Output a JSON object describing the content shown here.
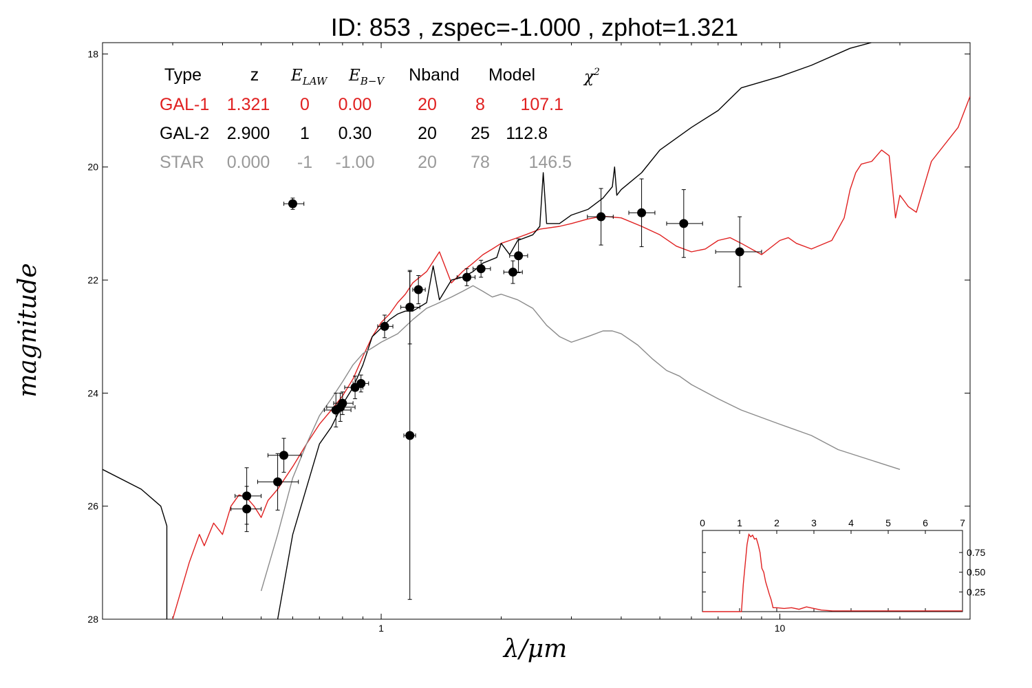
{
  "chart_data": {
    "type": "line",
    "title": "ID:  853   , zspec=-1.000 , zphot=1.321",
    "xlabel": "λ/μm",
    "ylabel": "magnitude",
    "x_scale": "log",
    "xlim": [
      0.2,
      30
    ],
    "ylim": [
      28,
      17.8
    ],
    "x_ticks": [
      {
        "value": 1,
        "label": "1"
      },
      {
        "value": 10,
        "label": "10"
      }
    ],
    "y_ticks": [
      {
        "value": 18,
        "label": "18"
      },
      {
        "value": 20,
        "label": "20"
      },
      {
        "value": 22,
        "label": "22"
      },
      {
        "value": 24,
        "label": "24"
      },
      {
        "value": 26,
        "label": "26"
      },
      {
        "value": 28,
        "label": "28"
      }
    ],
    "grid": false,
    "legend_table": {
      "headers": [
        "Type",
        "z",
        "E_LAW",
        "E_B−V",
        "Nband",
        "Model",
        "χ²"
      ],
      "rows": [
        {
          "cells": [
            "GAL-1",
            "1.321",
            "0",
            "0.00",
            "20",
            "8",
            "107.1"
          ],
          "color": "#e02020"
        },
        {
          "cells": [
            "GAL-2",
            "2.900",
            "1",
            "0.30",
            "20",
            "25",
            "112.8"
          ],
          "color": "#000000"
        },
        {
          "cells": [
            "STAR",
            "0.000",
            "-1",
            "-1.00",
            "20",
            "78",
            "146.5"
          ],
          "color": "#999999"
        }
      ]
    },
    "series": [
      {
        "name": "GAL-1",
        "color": "#e02020",
        "x": [
          0.3,
          0.33,
          0.35,
          0.36,
          0.38,
          0.4,
          0.42,
          0.44,
          0.46,
          0.48,
          0.5,
          0.52,
          0.55,
          0.6,
          0.65,
          0.7,
          0.75,
          0.8,
          0.85,
          0.9,
          0.95,
          1.0,
          1.05,
          1.1,
          1.15,
          1.2,
          1.3,
          1.4,
          1.5,
          1.6,
          1.7,
          1.8,
          1.9,
          2.0,
          2.1,
          2.2,
          2.3,
          2.5,
          2.8,
          3.0,
          3.3,
          3.6,
          4.0,
          4.5,
          5.0,
          5.5,
          6.0,
          6.5,
          7.0,
          7.5,
          8.0,
          9.0,
          10.0,
          10.5,
          11.0,
          12.0,
          13.5,
          14.5,
          15.0,
          15.5,
          16.0,
          17.0,
          18.0,
          18.8,
          19.5,
          20.0,
          20.5,
          21.0,
          22.0,
          24.0,
          28.0,
          30.0
        ],
        "y": [
          28.0,
          27.0,
          26.5,
          26.7,
          26.3,
          26.5,
          26.0,
          25.8,
          25.85,
          26.0,
          26.2,
          25.9,
          25.7,
          25.3,
          24.9,
          24.55,
          24.3,
          24.05,
          23.75,
          23.35,
          23.0,
          22.75,
          22.6,
          22.4,
          22.25,
          22.05,
          21.85,
          21.5,
          22.05,
          21.85,
          21.7,
          21.55,
          21.45,
          21.35,
          21.3,
          21.25,
          21.2,
          21.1,
          21.05,
          21.0,
          20.92,
          20.87,
          20.9,
          21.05,
          21.2,
          21.4,
          21.5,
          21.45,
          21.3,
          21.25,
          21.35,
          21.55,
          21.3,
          21.25,
          21.35,
          21.45,
          21.3,
          20.9,
          20.4,
          20.1,
          19.95,
          19.9,
          19.7,
          19.8,
          20.9,
          20.5,
          20.6,
          20.7,
          20.8,
          19.9,
          19.3,
          18.75
        ]
      },
      {
        "name": "GAL-2",
        "color": "#000000",
        "x": [
          0.2,
          0.25,
          0.28,
          0.29,
          0.29,
          0.3,
          0.32,
          0.35,
          0.4,
          0.45,
          0.5,
          0.55,
          0.6,
          0.7,
          0.75,
          0.8,
          0.85,
          0.9,
          0.95,
          1.0,
          1.05,
          1.1,
          1.15,
          1.2,
          1.3,
          1.35,
          1.4,
          1.5,
          1.6,
          1.7,
          1.8,
          1.95,
          2.0,
          2.1,
          2.2,
          2.4,
          2.5,
          2.55,
          2.6,
          2.8,
          3.0,
          3.3,
          3.6,
          3.8,
          3.85,
          3.9,
          4.0,
          4.5,
          5.0,
          6.0,
          7.0,
          8.0,
          10.0,
          12.0,
          15.0,
          18.0,
          20.0,
          22.0,
          23.0
        ],
        "y": [
          25.35,
          25.7,
          26.0,
          26.35,
          28.0,
          28.4,
          28.6,
          28.7,
          28.8,
          28.9,
          28.6,
          28.0,
          26.5,
          24.9,
          24.6,
          24.2,
          23.9,
          23.5,
          23.0,
          22.85,
          22.7,
          22.6,
          22.55,
          22.55,
          22.4,
          21.75,
          22.35,
          22.0,
          21.95,
          21.85,
          21.7,
          21.6,
          21.35,
          21.55,
          21.3,
          21.2,
          21.05,
          20.1,
          21.0,
          21.0,
          20.85,
          20.75,
          20.55,
          20.35,
          20.0,
          20.5,
          20.4,
          20.1,
          19.7,
          19.3,
          19.0,
          18.6,
          18.4,
          18.2,
          17.9,
          17.75,
          17.5,
          17.4,
          17.3
        ]
      },
      {
        "name": "STAR",
        "color": "#8a8a8a",
        "x": [
          0.5,
          0.55,
          0.6,
          0.65,
          0.7,
          0.75,
          0.8,
          0.85,
          0.9,
          0.95,
          1.0,
          1.1,
          1.2,
          1.3,
          1.4,
          1.5,
          1.6,
          1.7,
          1.8,
          1.9,
          2.0,
          2.2,
          2.4,
          2.6,
          2.8,
          3.0,
          3.3,
          3.6,
          3.8,
          4.0,
          4.4,
          4.8,
          5.2,
          5.6,
          6.0,
          7.0,
          8.0,
          10.0,
          12.0,
          14.0,
          20.0
        ],
        "y": [
          27.5,
          26.5,
          25.5,
          24.9,
          24.4,
          24.1,
          23.8,
          23.5,
          23.3,
          23.2,
          23.1,
          22.95,
          22.7,
          22.5,
          22.4,
          22.3,
          22.2,
          22.1,
          22.2,
          22.3,
          22.25,
          22.35,
          22.5,
          22.8,
          23.0,
          23.1,
          23.0,
          22.9,
          22.9,
          22.95,
          23.15,
          23.4,
          23.6,
          23.7,
          23.85,
          24.1,
          24.3,
          24.55,
          24.75,
          25.0,
          25.35
        ]
      }
    ],
    "observations": [
      {
        "x": 0.46,
        "y": 25.82,
        "xerr_lo": 0.43,
        "xerr_hi": 0.5,
        "yerr": 0.5
      },
      {
        "x": 0.46,
        "y": 26.05,
        "xerr_lo": 0.42,
        "xerr_hi": 0.5,
        "yerr": 0.4
      },
      {
        "x": 0.55,
        "y": 25.57,
        "xerr_lo": 0.49,
        "xerr_hi": 0.62,
        "yerr": 0.5
      },
      {
        "x": 0.57,
        "y": 25.1,
        "xerr_lo": 0.52,
        "xerr_hi": 0.63,
        "yerr": 0.3
      },
      {
        "x": 0.6,
        "y": 20.65,
        "xerr_lo": 0.57,
        "xerr_hi": 0.64,
        "yerr": 0.1
      },
      {
        "x": 0.77,
        "y": 24.3,
        "xerr_lo": 0.72,
        "xerr_hi": 0.84,
        "yerr": 0.3
      },
      {
        "x": 0.79,
        "y": 24.25,
        "xerr_lo": 0.73,
        "xerr_hi": 0.86,
        "yerr": 0.25
      },
      {
        "x": 0.8,
        "y": 24.18,
        "xerr_lo": 0.76,
        "xerr_hi": 0.85,
        "yerr": 0.2
      },
      {
        "x": 0.86,
        "y": 23.9,
        "xerr_lo": 0.81,
        "xerr_hi": 0.9,
        "yerr": 0.2
      },
      {
        "x": 0.89,
        "y": 23.83,
        "xerr_lo": 0.85,
        "xerr_hi": 0.93,
        "yerr": 0.15
      },
      {
        "x": 1.02,
        "y": 22.82,
        "xerr_lo": 0.98,
        "xerr_hi": 1.07,
        "yerr": 0.2
      },
      {
        "x": 1.18,
        "y": 22.48,
        "xerr_lo": 1.12,
        "xerr_hi": 1.25,
        "yerr": 0.65
      },
      {
        "x": 1.18,
        "y": 24.75,
        "xerr_lo": 1.14,
        "xerr_hi": 1.22,
        "yerr": 2.9
      },
      {
        "x": 1.24,
        "y": 22.17,
        "xerr_lo": 1.2,
        "xerr_hi": 1.29,
        "yerr": 0.25
      },
      {
        "x": 1.64,
        "y": 21.95,
        "xerr_lo": 1.55,
        "xerr_hi": 1.72,
        "yerr": 0.15
      },
      {
        "x": 1.78,
        "y": 21.8,
        "xerr_lo": 1.7,
        "xerr_hi": 1.88,
        "yerr": 0.15
      },
      {
        "x": 2.14,
        "y": 21.86,
        "xerr_lo": 2.03,
        "xerr_hi": 2.26,
        "yerr": 0.2
      },
      {
        "x": 2.21,
        "y": 21.57,
        "xerr_lo": 2.1,
        "xerr_hi": 2.33,
        "yerr": 0.3
      },
      {
        "x": 3.56,
        "y": 20.88,
        "xerr_lo": 3.29,
        "xerr_hi": 3.82,
        "yerr": 0.5
      },
      {
        "x": 4.5,
        "y": 20.81,
        "xerr_lo": 4.18,
        "xerr_hi": 4.86,
        "yerr": 0.6
      },
      {
        "x": 5.74,
        "y": 21.0,
        "xerr_lo": 5.2,
        "xerr_hi": 6.4,
        "yerr": 0.6
      },
      {
        "x": 7.93,
        "y": 21.5,
        "xerr_lo": 6.9,
        "xerr_hi": 9.0,
        "yerr": 0.62
      }
    ],
    "inset": {
      "type": "line",
      "xlim": [
        0,
        7
      ],
      "ylim": [
        0,
        1.03
      ],
      "x_ticks": [
        "0",
        "1",
        "2",
        "3",
        "4",
        "5",
        "6",
        "7"
      ],
      "y_ticks": [
        {
          "value": 0.25,
          "label": "0.25"
        },
        {
          "value": 0.5,
          "label": "0.50"
        },
        {
          "value": 0.75,
          "label": "0.75"
        }
      ],
      "color": "#e02020",
      "x": [
        0,
        1.05,
        1.1,
        1.2,
        1.25,
        1.3,
        1.35,
        1.4,
        1.45,
        1.5,
        1.55,
        1.6,
        1.65,
        1.7,
        1.75,
        1.8,
        1.85,
        1.9,
        2.0,
        2.2,
        2.4,
        2.6,
        2.8,
        3.0,
        3.2,
        3.5,
        7.0
      ],
      "y": [
        0,
        0,
        0.35,
        0.85,
        0.98,
        0.95,
        0.97,
        0.92,
        0.93,
        0.85,
        0.75,
        0.55,
        0.5,
        0.38,
        0.3,
        0.22,
        0.15,
        0.05,
        0.05,
        0.04,
        0.05,
        0.03,
        0.06,
        0.04,
        0.02,
        0.01,
        0.01
      ]
    }
  }
}
